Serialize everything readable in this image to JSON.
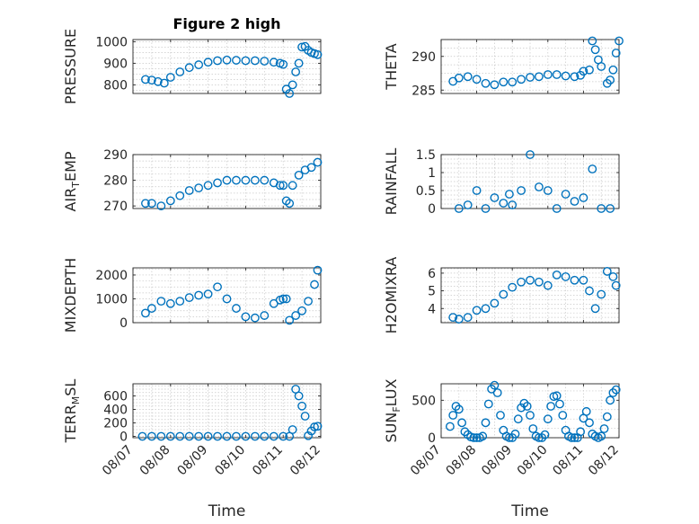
{
  "colors": {
    "marker": "#0072BD",
    "axis": "#262626",
    "grid": "#c8c8c8"
  },
  "chart_data": [
    {
      "type": "scatter",
      "title": "Figure 2 high",
      "ylabel": "PRESSURE",
      "xlim": [
        "08/07",
        "08/12"
      ],
      "ylim": [
        760,
        1010
      ],
      "yticks": [
        800,
        900,
        1000
      ],
      "yticklabels": [
        "800",
        "900",
        "1000"
      ],
      "xticks": [
        "08/07",
        "08/08",
        "08/09",
        "08/10",
        "08/11",
        "08/12"
      ],
      "grid": true,
      "x": [
        "08/07 08:00",
        "08/07 12:00",
        "08/07 16:00",
        "08/07 20:00",
        "08/08 00:00",
        "08/08 06:00",
        "08/08 12:00",
        "08/08 18:00",
        "08/09 00:00",
        "08/09 06:00",
        "08/09 12:00",
        "08/09 18:00",
        "08/10 00:00",
        "08/10 06:00",
        "08/10 12:00",
        "08/10 18:00",
        "08/10 22:00",
        "08/11 00:00",
        "08/11 02:00",
        "08/11 04:00",
        "08/11 06:00",
        "08/11 08:00",
        "08/11 10:00",
        "08/11 12:00",
        "08/11 14:00",
        "08/11 16:00",
        "08/11 18:00",
        "08/11 20:00",
        "08/11 22:00"
      ],
      "y": [
        825,
        822,
        815,
        808,
        835,
        860,
        880,
        893,
        905,
        912,
        915,
        914,
        912,
        912,
        910,
        905,
        900,
        895,
        780,
        760,
        800,
        860,
        900,
        975,
        978,
        960,
        950,
        945,
        940
      ]
    },
    {
      "type": "scatter",
      "ylabel": "THETA",
      "ylim": [
        284.5,
        292.5
      ],
      "yticks": [
        285,
        290
      ],
      "yticklabels": [
        "285",
        "290"
      ],
      "grid": true,
      "x": [
        "08/07 08:00",
        "08/07 12:00",
        "08/07 18:00",
        "08/08 00:00",
        "08/08 06:00",
        "08/08 12:00",
        "08/08 18:00",
        "08/09 00:00",
        "08/09 06:00",
        "08/09 12:00",
        "08/09 18:00",
        "08/10 00:00",
        "08/10 06:00",
        "08/10 12:00",
        "08/10 18:00",
        "08/10 22:00",
        "08/11 00:00",
        "08/11 04:00",
        "08/11 06:00",
        "08/11 08:00",
        "08/11 10:00",
        "08/11 12:00",
        "08/11 16:00",
        "08/11 18:00",
        "08/11 20:00",
        "08/11 22:00",
        "08/12 00:00"
      ],
      "y": [
        286.3,
        286.8,
        287.0,
        286.6,
        286.0,
        285.8,
        286.2,
        286.2,
        286.6,
        286.9,
        287.0,
        287.3,
        287.3,
        287.1,
        287.0,
        287.2,
        287.8,
        288.0,
        292.3,
        291.0,
        289.5,
        288.5,
        286.0,
        286.5,
        288.0,
        290.5,
        292.3
      ]
    },
    {
      "type": "scatter",
      "ylabel": "AIR_TEMP",
      "ylim": [
        269,
        290
      ],
      "yticks": [
        270,
        280,
        290
      ],
      "yticklabels": [
        "270",
        "280",
        "290"
      ],
      "grid": true,
      "x": [
        "08/07 08:00",
        "08/07 12:00",
        "08/07 18:00",
        "08/08 00:00",
        "08/08 06:00",
        "08/08 12:00",
        "08/08 18:00",
        "08/09 00:00",
        "08/09 06:00",
        "08/09 12:00",
        "08/09 18:00",
        "08/10 00:00",
        "08/10 06:00",
        "08/10 12:00",
        "08/10 18:00",
        "08/10 22:00",
        "08/11 00:00",
        "08/11 02:00",
        "08/11 04:00",
        "08/11 06:00",
        "08/11 10:00",
        "08/11 14:00",
        "08/11 18:00",
        "08/11 22:00"
      ],
      "y": [
        271,
        271,
        270,
        272,
        274,
        276,
        277,
        278,
        279,
        280,
        280,
        280,
        280,
        280,
        279,
        278,
        278,
        272,
        271,
        278,
        282,
        284,
        285,
        287
      ]
    },
    {
      "type": "scatter",
      "ylabel": "RAINFALL",
      "ylim": [
        0,
        1.5
      ],
      "yticks": [
        0,
        0.5,
        1,
        1.5
      ],
      "yticklabels": [
        "0",
        "0.5",
        "1",
        "1.5"
      ],
      "grid": true,
      "x": [
        "08/07 12:00",
        "08/07 18:00",
        "08/08 00:00",
        "08/08 06:00",
        "08/08 12:00",
        "08/08 18:00",
        "08/08 22:00",
        "08/09 00:00",
        "08/09 06:00",
        "08/09 12:00",
        "08/09 18:00",
        "08/10 00:00",
        "08/10 06:00",
        "08/10 12:00",
        "08/10 18:00",
        "08/11 00:00",
        "08/11 06:00",
        "08/11 12:00",
        "08/11 18:00"
      ],
      "y": [
        0,
        0.1,
        0.5,
        0,
        0.3,
        0.15,
        0.4,
        0.1,
        0.5,
        1.5,
        0.6,
        0.5,
        0,
        0.4,
        0.2,
        0.3,
        1.1,
        0,
        0
      ]
    },
    {
      "type": "scatter",
      "ylabel": "MIXDEPTH",
      "ylim": [
        0,
        2300
      ],
      "yticks": [
        0,
        1000,
        2000
      ],
      "yticklabels": [
        "0",
        "1000",
        "2000"
      ],
      "grid": true,
      "x": [
        "08/07 08:00",
        "08/07 12:00",
        "08/07 18:00",
        "08/08 00:00",
        "08/08 06:00",
        "08/08 12:00",
        "08/08 18:00",
        "08/09 00:00",
        "08/09 06:00",
        "08/09 12:00",
        "08/09 18:00",
        "08/10 00:00",
        "08/10 06:00",
        "08/10 12:00",
        "08/10 18:00",
        "08/10 22:00",
        "08/11 00:00",
        "08/11 02:00",
        "08/11 04:00",
        "08/11 08:00",
        "08/11 12:00",
        "08/11 16:00",
        "08/11 20:00",
        "08/11 22:00"
      ],
      "y": [
        400,
        600,
        900,
        800,
        900,
        1050,
        1150,
        1200,
        1500,
        1000,
        600,
        250,
        200,
        300,
        800,
        950,
        1000,
        1000,
        100,
        300,
        500,
        900,
        1600,
        2200
      ]
    },
    {
      "type": "scatter",
      "ylabel": "H2OMIXRA",
      "ylim": [
        3.2,
        6.3
      ],
      "yticks": [
        4,
        5,
        6
      ],
      "yticklabels": [
        "4",
        "5",
        "6"
      ],
      "grid": true,
      "x": [
        "08/07 08:00",
        "08/07 12:00",
        "08/07 18:00",
        "08/08 00:00",
        "08/08 06:00",
        "08/08 12:00",
        "08/08 18:00",
        "08/09 00:00",
        "08/09 06:00",
        "08/09 12:00",
        "08/09 18:00",
        "08/10 00:00",
        "08/10 06:00",
        "08/10 12:00",
        "08/10 18:00",
        "08/11 00:00",
        "08/11 04:00",
        "08/11 08:00",
        "08/11 12:00",
        "08/11 16:00",
        "08/11 20:00",
        "08/11 22:00"
      ],
      "y": [
        3.5,
        3.4,
        3.5,
        3.9,
        4.0,
        4.3,
        4.8,
        5.2,
        5.5,
        5.6,
        5.5,
        5.3,
        5.9,
        5.8,
        5.6,
        5.6,
        5.0,
        4.0,
        4.8,
        6.1,
        5.8,
        5.3
      ]
    },
    {
      "type": "scatter",
      "ylabel": "TERR_MSL",
      "ylim": [
        -20,
        780
      ],
      "yticks": [
        0,
        200,
        400,
        600
      ],
      "yticklabels": [
        "0",
        "200",
        "400",
        "600"
      ],
      "grid": true,
      "xlabel": "Time",
      "xticklabels": [
        "08/07",
        "08/08",
        "08/09",
        "08/10",
        "08/11",
        "08/12"
      ],
      "x": [
        "08/07 06:00",
        "08/07 12:00",
        "08/07 18:00",
        "08/08 00:00",
        "08/08 06:00",
        "08/08 12:00",
        "08/08 18:00",
        "08/09 00:00",
        "08/09 06:00",
        "08/09 12:00",
        "08/09 18:00",
        "08/10 00:00",
        "08/10 06:00",
        "08/10 12:00",
        "08/10 18:00",
        "08/11 00:00",
        "08/11 04:00",
        "08/11 06:00",
        "08/11 08:00",
        "08/11 10:00",
        "08/11 12:00",
        "08/11 14:00",
        "08/11 16:00",
        "08/11 18:00",
        "08/11 20:00",
        "08/11 22:00"
      ],
      "y": [
        0,
        0,
        0,
        0,
        0,
        0,
        0,
        0,
        0,
        0,
        0,
        0,
        0,
        0,
        0,
        0,
        0,
        100,
        700,
        600,
        450,
        300,
        10,
        80,
        140,
        150
      ]
    },
    {
      "type": "scatter",
      "ylabel": "SUN_FLUX",
      "ylim": [
        0,
        720
      ],
      "yticks": [
        0,
        500
      ],
      "yticklabels": [
        "0",
        "500"
      ],
      "grid": true,
      "xlabel": "Time",
      "xticklabels": [
        "08/07",
        "08/08",
        "08/09",
        "08/10",
        "08/11",
        "08/12"
      ],
      "x": [
        "08/07 06:00",
        "08/07 08:00",
        "08/07 10:00",
        "08/07 12:00",
        "08/07 14:00",
        "08/07 16:00",
        "08/07 18:00",
        "08/07 20:00",
        "08/07 22:00",
        "08/08 00:00",
        "08/08 02:00",
        "08/08 04:00",
        "08/08 06:00",
        "08/08 08:00",
        "08/08 10:00",
        "08/08 12:00",
        "08/08 14:00",
        "08/08 16:00",
        "08/08 18:00",
        "08/08 20:00",
        "08/08 22:00",
        "08/09 00:00",
        "08/09 02:00",
        "08/09 04:00",
        "08/09 06:00",
        "08/09 08:00",
        "08/09 10:00",
        "08/09 12:00",
        "08/09 14:00",
        "08/09 16:00",
        "08/09 18:00",
        "08/09 20:00",
        "08/09 22:00",
        "08/10 00:00",
        "08/10 02:00",
        "08/10 04:00",
        "08/10 06:00",
        "08/10 08:00",
        "08/10 10:00",
        "08/10 12:00",
        "08/10 14:00",
        "08/10 16:00",
        "08/10 18:00",
        "08/10 20:00",
        "08/10 22:00",
        "08/11 00:00",
        "08/11 02:00",
        "08/11 04:00",
        "08/11 06:00",
        "08/11 08:00",
        "08/11 10:00",
        "08/11 12:00",
        "08/11 14:00",
        "08/11 16:00",
        "08/11 18:00",
        "08/11 20:00",
        "08/11 22:00"
      ],
      "y": [
        150,
        300,
        420,
        380,
        200,
        80,
        40,
        10,
        0,
        0,
        0,
        20,
        200,
        450,
        650,
        700,
        600,
        300,
        100,
        20,
        0,
        0,
        50,
        250,
        400,
        460,
        420,
        300,
        120,
        20,
        0,
        0,
        40,
        250,
        420,
        550,
        560,
        450,
        300,
        100,
        20,
        0,
        0,
        0,
        80,
        260,
        350,
        200,
        50,
        20,
        0,
        20,
        120,
        280,
        500,
        600,
        640
      ]
    }
  ]
}
